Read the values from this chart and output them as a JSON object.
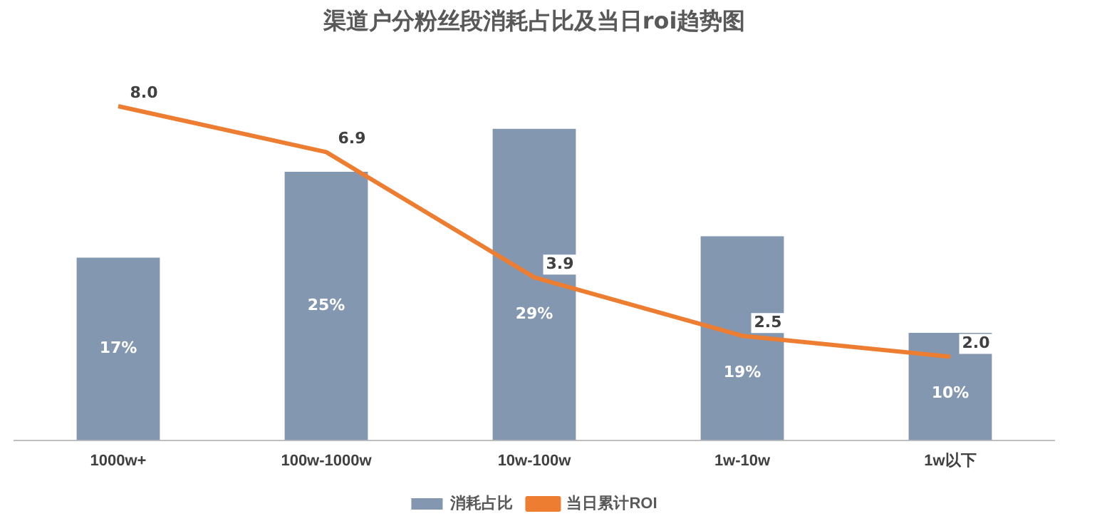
{
  "chart_data": {
    "type": "bar",
    "title": "渠道户分粉丝段消耗占比及当日roi趋势图",
    "categories": [
      "1000w+",
      "100w-1000w",
      "10w-100w",
      "1w-10w",
      "1w以下"
    ],
    "legend": "bottom",
    "series": [
      {
        "name": "消耗占比",
        "color": "#8497b0",
        "values": [
          17,
          25,
          29,
          19,
          10
        ],
        "value_labels": [
          "17%",
          "25%",
          "29%",
          "19%",
          "10%"
        ]
      },
      {
        "name": "当日累计ROI",
        "type": "line",
        "axis": "y2",
        "color": "#ed7d31",
        "marker": "none",
        "values": [
          8.0,
          6.9,
          3.9,
          2.5,
          2.0
        ],
        "value_labels": [
          "8.0",
          "6.9",
          "3.9",
          "2.5",
          "2.0"
        ]
      }
    ]
  }
}
